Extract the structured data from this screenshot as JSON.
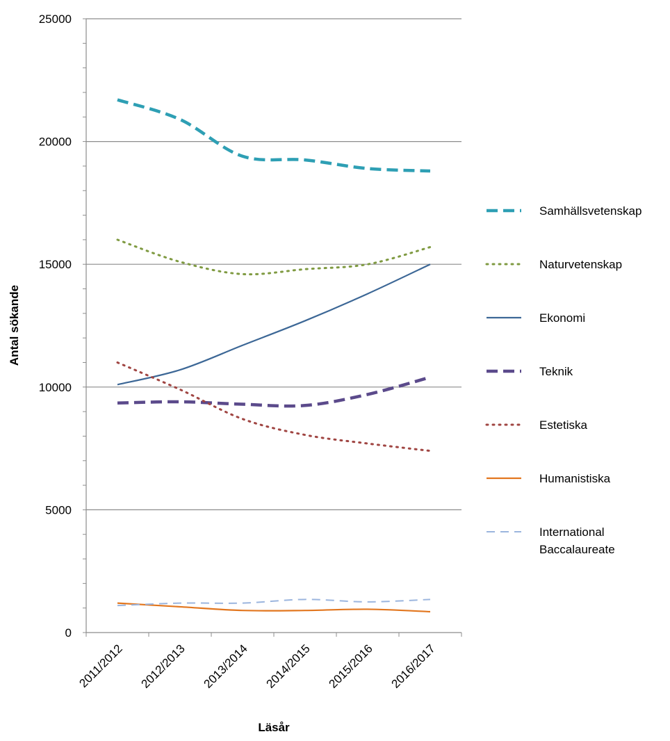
{
  "chart_data": {
    "type": "line",
    "title": "",
    "xlabel": "Läsår",
    "ylabel": "Antal sökande",
    "categories": [
      "2011/2012",
      "2012/2013",
      "2013/2014",
      "2014/2015",
      "2015/2016",
      "2016/2017"
    ],
    "ylim": [
      0,
      25000
    ],
    "yticks": [
      "0",
      "5000",
      "10000",
      "15000",
      "20000",
      "25000"
    ],
    "grid": true,
    "legend_position": "right",
    "series": [
      {
        "name": "Samhällsvetenskap",
        "values": [
          21700,
          20900,
          19400,
          19250,
          18900,
          18800
        ],
        "color": "#2e9fb4",
        "style": "dashed-thick"
      },
      {
        "name": "Naturvetenskap",
        "values": [
          16000,
          15100,
          14600,
          14800,
          15000,
          15700
        ],
        "color": "#7f9a41",
        "style": "dotted"
      },
      {
        "name": "Ekonomi",
        "values": [
          10100,
          10700,
          11700,
          12700,
          13800,
          15000
        ],
        "color": "#3c6796",
        "style": "solid"
      },
      {
        "name": "Teknik",
        "values": [
          9350,
          9400,
          9300,
          9250,
          9700,
          10400
        ],
        "color": "#5b4a8b",
        "style": "dashed-thick"
      },
      {
        "name": "Estetiska",
        "values": [
          11000,
          9900,
          8700,
          8050,
          7700,
          7400
        ],
        "color": "#a04542",
        "style": "dotted"
      },
      {
        "name": "Humanistiska",
        "values": [
          1200,
          1050,
          900,
          900,
          950,
          850
        ],
        "color": "#e2761e",
        "style": "solid"
      },
      {
        "name": "International Baccalaureate",
        "values": [
          1100,
          1200,
          1200,
          1350,
          1250,
          1350
        ],
        "color": "#9bb5de",
        "style": "dashed-thin"
      }
    ]
  }
}
